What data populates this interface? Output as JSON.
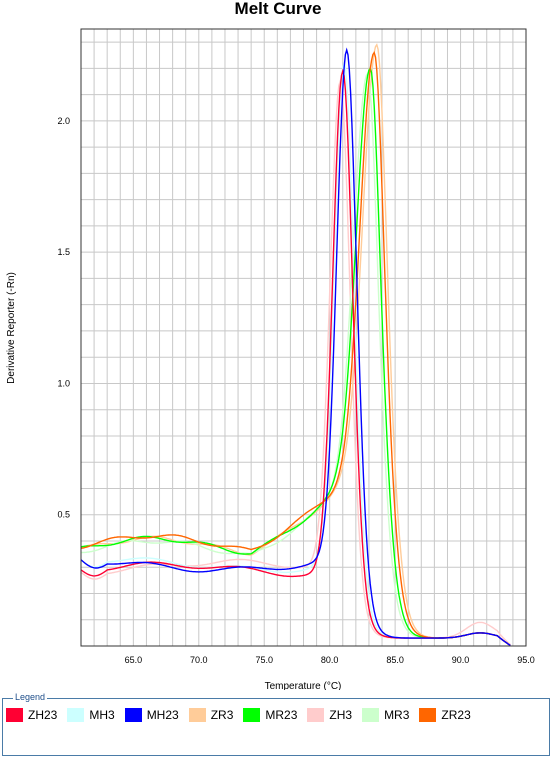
{
  "chart_data": {
    "type": "line",
    "title": "Melt Curve",
    "xlabel": "Temperature (°C)",
    "ylabel": "Derivative Reporter (-Rn)",
    "xlim": [
      61,
      95
    ],
    "ylim": [
      0,
      2.35
    ],
    "xticks": [
      65,
      70,
      75,
      80,
      85,
      90,
      95
    ],
    "xtick_labels": [
      "65.0",
      "70.0",
      "75.0",
      "80.0",
      "85.0",
      "90.0",
      "95.0"
    ],
    "yticks": [
      0.5,
      1.0,
      1.5,
      2.0
    ],
    "ytick_labels": [
      "0.5",
      "1.0",
      "1.5",
      "2.0"
    ],
    "grid": true,
    "legend_position": "bottom",
    "series": [
      {
        "name": "ZH23",
        "color": "#ff0033",
        "group": "A",
        "peak_x": 81.0,
        "peak_y": 2.19,
        "start_y": 0.29
      },
      {
        "name": "MH3",
        "color": "#ccffff",
        "group": "A",
        "peak_x": 81.1,
        "peak_y": 2.22,
        "start_y": 0.31
      },
      {
        "name": "MH23",
        "color": "#0000ff",
        "group": "A",
        "peak_x": 81.3,
        "peak_y": 2.27,
        "start_y": 0.31
      },
      {
        "name": "ZR3",
        "color": "#ffcc99",
        "group": "B",
        "peak_x": 83.6,
        "peak_y": 2.29,
        "start_y": 0.38
      },
      {
        "name": "MR23",
        "color": "#00ff00",
        "group": "B",
        "peak_x": 83.1,
        "peak_y": 2.2,
        "start_y": 0.38
      },
      {
        "name": "ZH3",
        "color": "#ffcccc",
        "group": "A",
        "peak_x": 80.8,
        "peak_y": 2.15,
        "start_y": 0.3
      },
      {
        "name": "MR3",
        "color": "#ccffcc",
        "group": "B",
        "peak_x": 82.9,
        "peak_y": 2.18,
        "start_y": 0.37
      },
      {
        "name": "ZR23",
        "color": "#ff6600",
        "group": "B",
        "peak_x": 83.4,
        "peak_y": 2.26,
        "start_y": 0.39
      }
    ]
  },
  "legend": {
    "title": "Legend"
  }
}
